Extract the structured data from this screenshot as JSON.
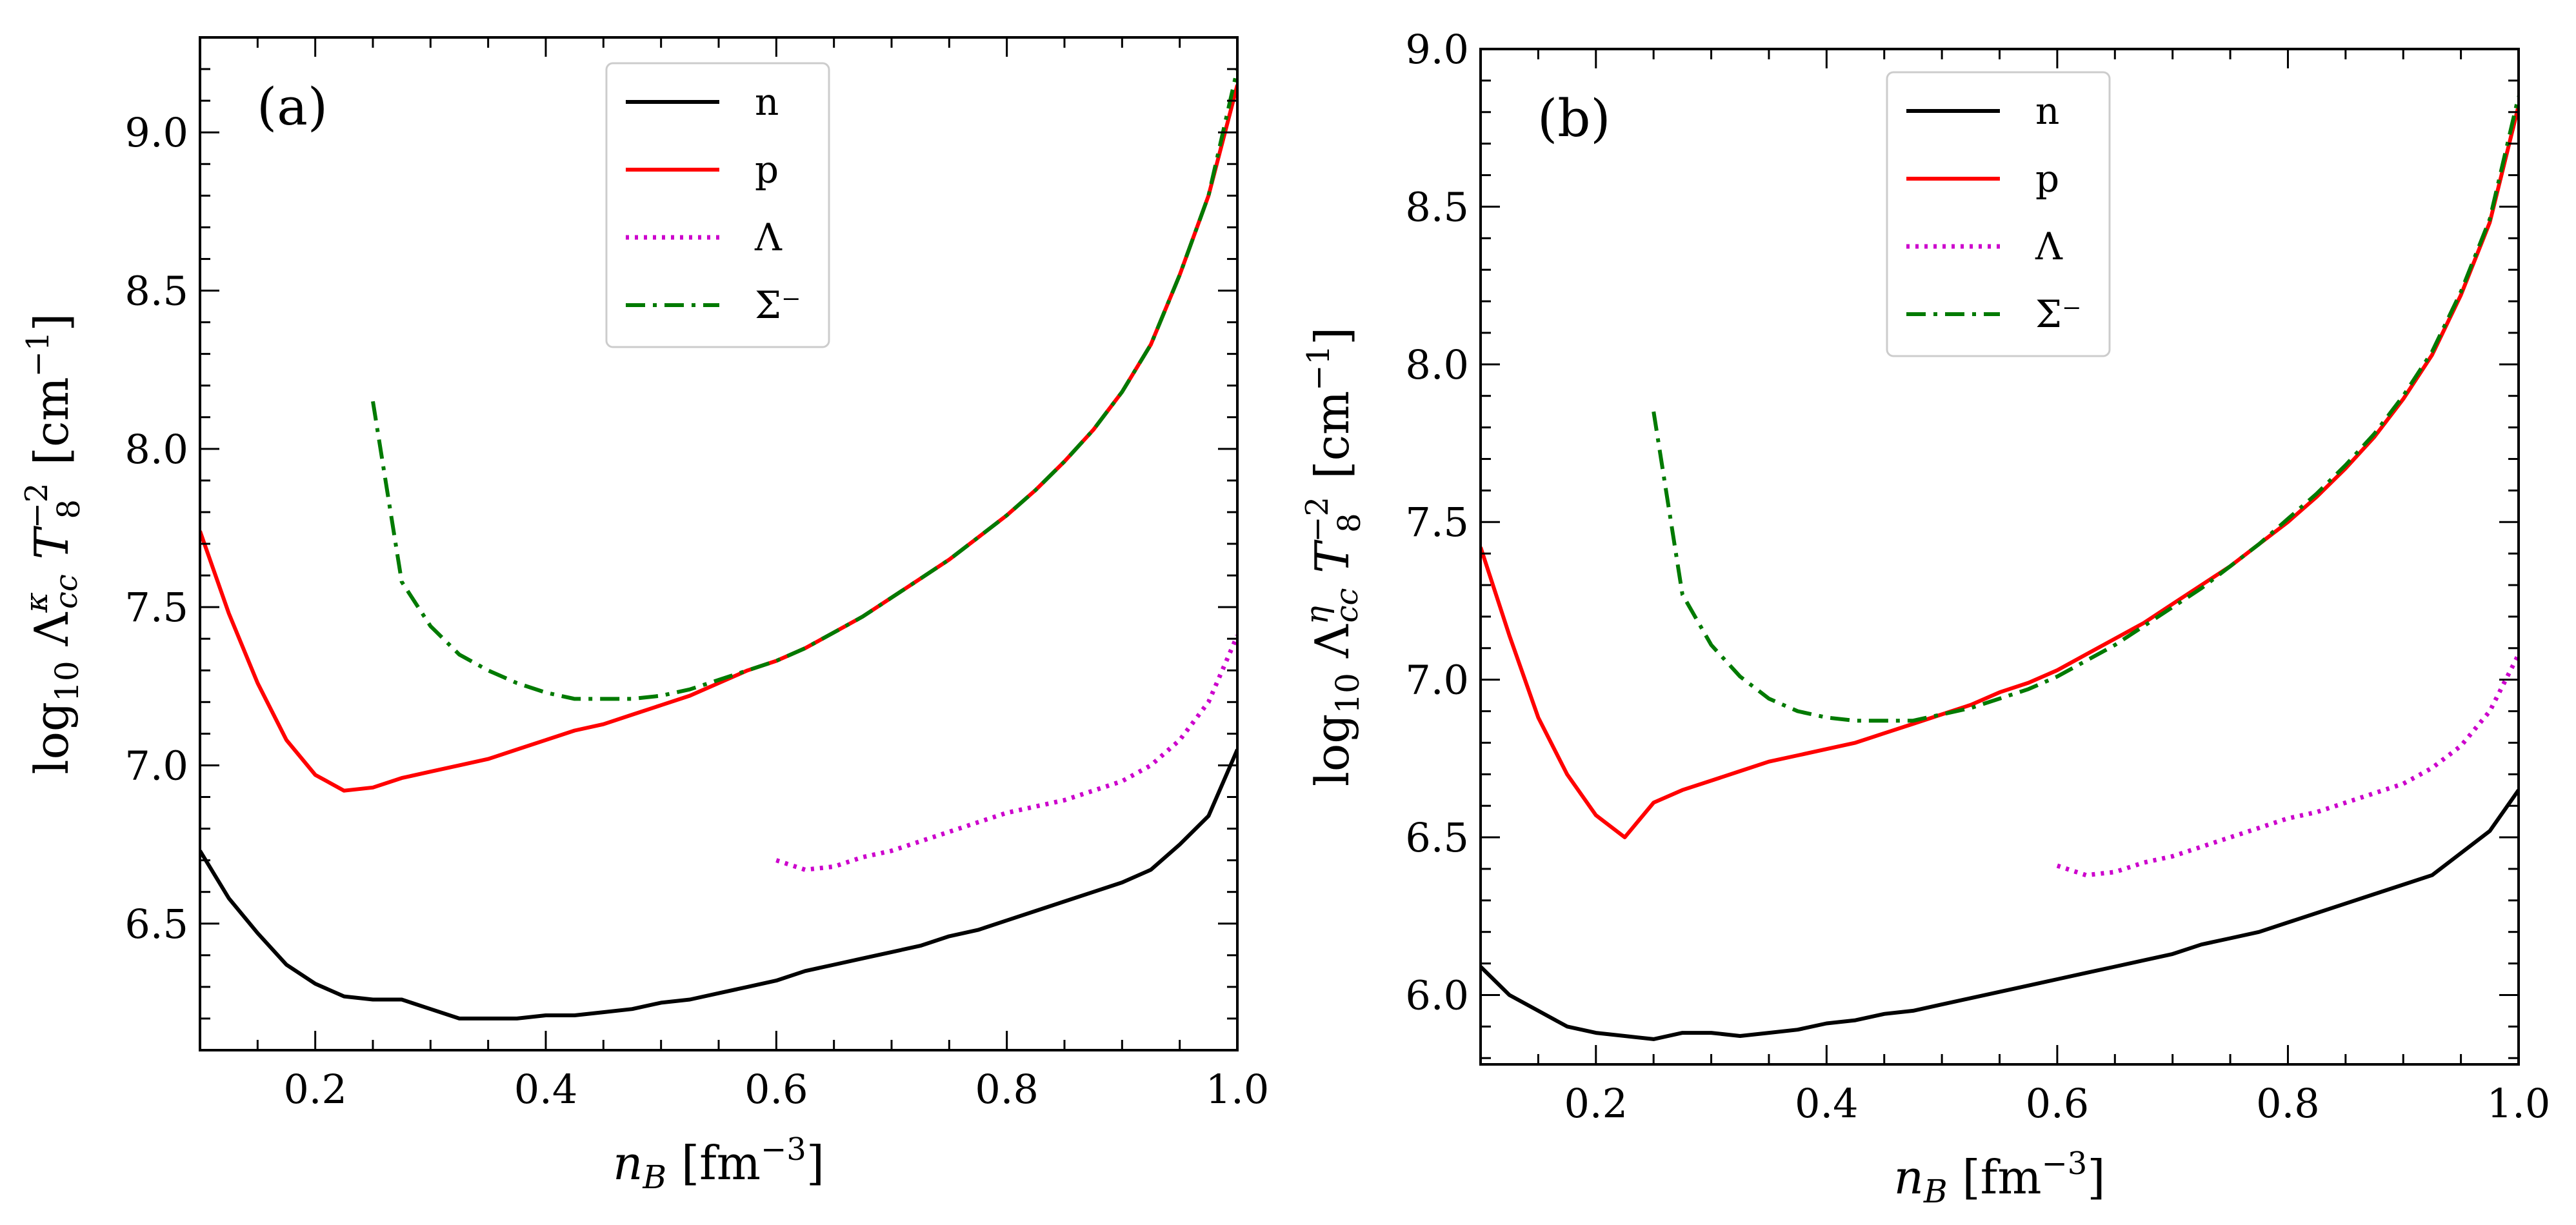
{
  "chart_data": [
    {
      "type": "line",
      "panel_label": "(a)",
      "xlabel": "n_B [fm^-3]",
      "ylabel": "log10 Λ_cc^κ T_8^-2 [cm^-1]",
      "xlim": [
        0.1,
        1.0
      ],
      "ylim": [
        6.1,
        9.3
      ],
      "xticks": [
        0.2,
        0.4,
        0.6,
        0.8,
        1.0
      ],
      "xtick_labels": [
        "0.2",
        "0.4",
        "0.6",
        "0.8",
        "1.0"
      ],
      "yticks": [
        6.5,
        7.0,
        7.5,
        8.0,
        8.5,
        9.0
      ],
      "ytick_labels": [
        "6.5",
        "7.0",
        "7.5",
        "8.0",
        "8.5",
        "9.0"
      ],
      "legend_position": "top-center",
      "series": [
        {
          "name": "n",
          "color": "#000000",
          "dash": "solid",
          "x": [
            0.1,
            0.125,
            0.15,
            0.175,
            0.2,
            0.225,
            0.25,
            0.275,
            0.3,
            0.325,
            0.35,
            0.375,
            0.4,
            0.425,
            0.45,
            0.475,
            0.5,
            0.525,
            0.55,
            0.575,
            0.6,
            0.625,
            0.65,
            0.675,
            0.7,
            0.725,
            0.75,
            0.775,
            0.8,
            0.825,
            0.85,
            0.875,
            0.9,
            0.925,
            0.95,
            0.975,
            1.0
          ],
          "y": [
            6.73,
            6.58,
            6.47,
            6.37,
            6.31,
            6.27,
            6.26,
            6.26,
            6.23,
            6.2,
            6.2,
            6.2,
            6.21,
            6.21,
            6.22,
            6.23,
            6.25,
            6.26,
            6.28,
            6.3,
            6.32,
            6.35,
            6.37,
            6.39,
            6.41,
            6.43,
            6.46,
            6.48,
            6.51,
            6.54,
            6.57,
            6.6,
            6.63,
            6.67,
            6.75,
            6.84,
            7.05
          ]
        },
        {
          "name": "p",
          "color": "#ff0000",
          "dash": "solid",
          "x": [
            0.1,
            0.125,
            0.15,
            0.175,
            0.2,
            0.225,
            0.25,
            0.275,
            0.3,
            0.325,
            0.35,
            0.375,
            0.4,
            0.425,
            0.45,
            0.475,
            0.5,
            0.525,
            0.55,
            0.575,
            0.6,
            0.625,
            0.65,
            0.675,
            0.7,
            0.725,
            0.75,
            0.775,
            0.8,
            0.825,
            0.85,
            0.875,
            0.9,
            0.925,
            0.95,
            0.975,
            1.0
          ],
          "y": [
            7.74,
            7.48,
            7.26,
            7.08,
            6.97,
            6.92,
            6.93,
            6.96,
            6.98,
            7.0,
            7.02,
            7.05,
            7.08,
            7.11,
            7.13,
            7.16,
            7.19,
            7.22,
            7.26,
            7.3,
            7.33,
            7.37,
            7.42,
            7.47,
            7.53,
            7.59,
            7.65,
            7.72,
            7.79,
            7.87,
            7.96,
            8.06,
            8.18,
            8.33,
            8.55,
            8.8,
            9.15
          ]
        },
        {
          "name": "Λ",
          "color": "#cc00cc",
          "dash": "dotted",
          "x": [
            0.6,
            0.625,
            0.65,
            0.675,
            0.7,
            0.725,
            0.75,
            0.775,
            0.8,
            0.825,
            0.85,
            0.875,
            0.9,
            0.925,
            0.95,
            0.975,
            1.0
          ],
          "y": [
            6.7,
            6.67,
            6.68,
            6.71,
            6.73,
            6.76,
            6.79,
            6.82,
            6.85,
            6.87,
            6.89,
            6.92,
            6.95,
            7.0,
            7.08,
            7.2,
            7.41
          ]
        },
        {
          "name": "Σ⁻",
          "color": "#007a00",
          "dash": "dashdot",
          "x": [
            0.25,
            0.275,
            0.3,
            0.325,
            0.35,
            0.375,
            0.4,
            0.425,
            0.45,
            0.475,
            0.5,
            0.525,
            0.55,
            0.575,
            0.6,
            0.625,
            0.65,
            0.675,
            0.7,
            0.725,
            0.75,
            0.775,
            0.8,
            0.825,
            0.85,
            0.875,
            0.9,
            0.925,
            0.95,
            0.975,
            1.0
          ],
          "y": [
            8.15,
            7.58,
            7.44,
            7.35,
            7.3,
            7.26,
            7.23,
            7.21,
            7.21,
            7.21,
            7.22,
            7.24,
            7.27,
            7.3,
            7.33,
            7.37,
            7.42,
            7.47,
            7.53,
            7.59,
            7.65,
            7.72,
            7.79,
            7.87,
            7.96,
            8.06,
            8.18,
            8.33,
            8.55,
            8.8,
            9.2
          ]
        }
      ]
    },
    {
      "type": "line",
      "panel_label": "(b)",
      "xlabel": "n_B [fm^-3]",
      "ylabel": "log10 Λ_cc^η T_8^-2 [cm^-1]",
      "xlim": [
        0.1,
        1.0
      ],
      "ylim": [
        5.78,
        9.0
      ],
      "xticks": [
        0.2,
        0.4,
        0.6,
        0.8,
        1.0
      ],
      "xtick_labels": [
        "0.2",
        "0.4",
        "0.6",
        "0.8",
        "1.0"
      ],
      "yticks": [
        6.0,
        6.5,
        7.0,
        7.5,
        8.0,
        8.5,
        9.0
      ],
      "ytick_labels": [
        "6.0",
        "6.5",
        "7.0",
        "7.5",
        "8.0",
        "8.5",
        "9.0"
      ],
      "legend_position": "top-center",
      "series": [
        {
          "name": "n",
          "color": "#000000",
          "dash": "solid",
          "x": [
            0.1,
            0.125,
            0.15,
            0.175,
            0.2,
            0.225,
            0.25,
            0.275,
            0.3,
            0.325,
            0.35,
            0.375,
            0.4,
            0.425,
            0.45,
            0.475,
            0.5,
            0.525,
            0.55,
            0.575,
            0.6,
            0.625,
            0.65,
            0.675,
            0.7,
            0.725,
            0.75,
            0.775,
            0.8,
            0.825,
            0.85,
            0.875,
            0.9,
            0.925,
            0.95,
            0.975,
            1.0
          ],
          "y": [
            6.09,
            6.0,
            5.95,
            5.9,
            5.88,
            5.87,
            5.86,
            5.88,
            5.88,
            5.87,
            5.88,
            5.89,
            5.91,
            5.92,
            5.94,
            5.95,
            5.97,
            5.99,
            6.01,
            6.03,
            6.05,
            6.07,
            6.09,
            6.11,
            6.13,
            6.16,
            6.18,
            6.2,
            6.23,
            6.26,
            6.29,
            6.32,
            6.35,
            6.38,
            6.45,
            6.52,
            6.65
          ]
        },
        {
          "name": "p",
          "color": "#ff0000",
          "dash": "solid",
          "x": [
            0.1,
            0.125,
            0.15,
            0.175,
            0.2,
            0.225,
            0.25,
            0.275,
            0.3,
            0.325,
            0.35,
            0.375,
            0.4,
            0.425,
            0.45,
            0.475,
            0.5,
            0.525,
            0.55,
            0.575,
            0.6,
            0.625,
            0.65,
            0.675,
            0.7,
            0.725,
            0.75,
            0.775,
            0.8,
            0.825,
            0.85,
            0.875,
            0.9,
            0.925,
            0.95,
            0.975,
            1.0
          ],
          "y": [
            7.42,
            7.14,
            6.88,
            6.7,
            6.57,
            6.5,
            6.61,
            6.65,
            6.68,
            6.71,
            6.74,
            6.76,
            6.78,
            6.8,
            6.83,
            6.86,
            6.89,
            6.92,
            6.96,
            6.99,
            7.03,
            7.08,
            7.13,
            7.18,
            7.24,
            7.3,
            7.36,
            7.43,
            7.5,
            7.58,
            7.67,
            7.77,
            7.89,
            8.03,
            8.22,
            8.45,
            8.82
          ]
        },
        {
          "name": "Λ",
          "color": "#cc00cc",
          "dash": "dotted",
          "x": [
            0.6,
            0.625,
            0.65,
            0.675,
            0.7,
            0.725,
            0.75,
            0.775,
            0.8,
            0.825,
            0.85,
            0.875,
            0.9,
            0.925,
            0.95,
            0.975,
            1.0
          ],
          "y": [
            6.41,
            6.38,
            6.39,
            6.42,
            6.44,
            6.47,
            6.5,
            6.53,
            6.56,
            6.58,
            6.61,
            6.64,
            6.67,
            6.72,
            6.79,
            6.9,
            7.08
          ]
        },
        {
          "name": "Σ⁻",
          "color": "#007a00",
          "dash": "dashdot",
          "x": [
            0.25,
            0.275,
            0.3,
            0.325,
            0.35,
            0.375,
            0.4,
            0.425,
            0.45,
            0.475,
            0.5,
            0.525,
            0.55,
            0.575,
            0.6,
            0.625,
            0.65,
            0.675,
            0.7,
            0.725,
            0.75,
            0.775,
            0.8,
            0.825,
            0.85,
            0.875,
            0.9,
            0.925,
            0.95,
            0.975,
            1.0
          ],
          "y": [
            7.85,
            7.27,
            7.11,
            7.01,
            6.94,
            6.9,
            6.88,
            6.87,
            6.87,
            6.87,
            6.89,
            6.91,
            6.94,
            6.97,
            7.01,
            7.06,
            7.11,
            7.17,
            7.23,
            7.29,
            7.36,
            7.43,
            7.51,
            7.59,
            7.68,
            7.78,
            7.9,
            8.04,
            8.23,
            8.46,
            8.85
          ]
        }
      ]
    }
  ]
}
